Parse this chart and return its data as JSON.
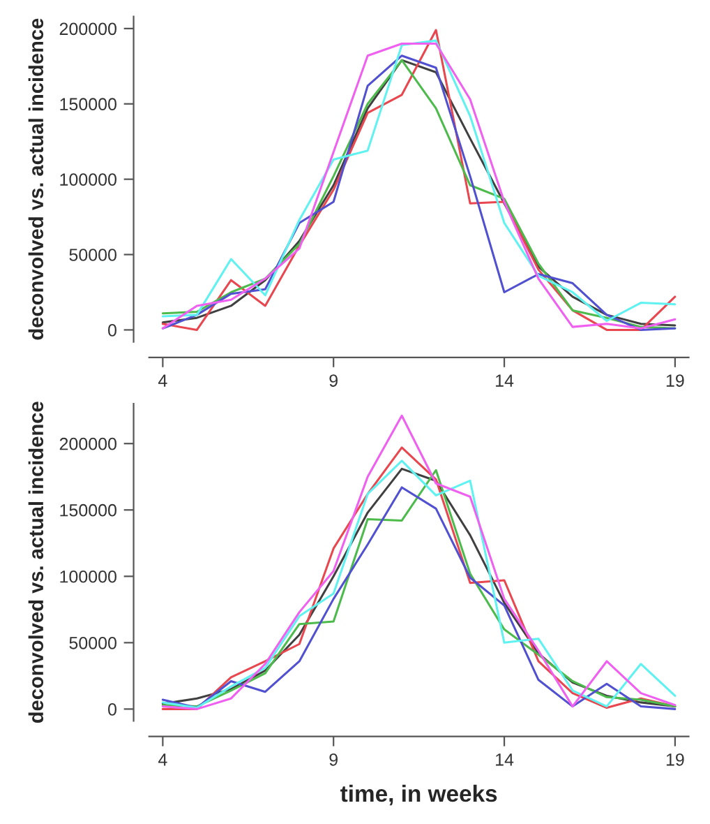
{
  "chart_data": [
    {
      "type": "line",
      "ylabel": "deconvolved vs. actual incidence",
      "x": [
        4,
        5,
        6,
        7,
        8,
        9,
        10,
        11,
        12,
        13,
        14,
        15,
        16,
        17,
        18,
        19
      ],
      "xlim": [
        3.6,
        19.4
      ],
      "xticks": [
        4,
        9,
        14,
        19
      ],
      "ylim": [
        -8000,
        208000
      ],
      "yticks": [
        0,
        50000,
        100000,
        150000,
        200000
      ],
      "grid": false,
      "marker": "none",
      "line_style": "solid",
      "series": [
        {
          "color": "#404040",
          "values": [
            5000,
            8000,
            16000,
            33000,
            59000,
            96000,
            147000,
            179000,
            171000,
            127000,
            84000,
            42000,
            22000,
            10000,
            4000,
            3000
          ]
        },
        {
          "color": "#e8474f",
          "values": [
            4000,
            0,
            33000,
            16000,
            56000,
            93000,
            144000,
            156000,
            199000,
            84000,
            85000,
            40000,
            13000,
            0,
            0,
            22000
          ]
        },
        {
          "color": "#4cbb4c",
          "values": [
            11000,
            12000,
            25000,
            34000,
            57000,
            102000,
            150000,
            179000,
            147000,
            96000,
            87000,
            44000,
            13000,
            8000,
            2000,
            1000
          ]
        },
        {
          "color": "#5050d0",
          "values": [
            1000,
            10000,
            24000,
            27000,
            71000,
            85000,
            162000,
            182000,
            174000,
            102000,
            25000,
            37000,
            31000,
            10000,
            0,
            1000
          ]
        },
        {
          "color": "#5ff2f0",
          "values": [
            9000,
            10000,
            47000,
            23000,
            73000,
            113000,
            119000,
            189000,
            192000,
            142000,
            71000,
            36000,
            25000,
            6000,
            18000,
            17000
          ]
        },
        {
          "color": "#f060f0",
          "values": [
            1000,
            16000,
            20000,
            34000,
            54000,
            118000,
            182000,
            190000,
            190000,
            153000,
            85000,
            34000,
            2000,
            4000,
            1000,
            7000
          ]
        }
      ]
    },
    {
      "type": "line",
      "xlabel": "time, in weeks",
      "ylabel": "deconvolved vs. actual incidence",
      "x": [
        4,
        5,
        6,
        7,
        8,
        9,
        10,
        11,
        12,
        13,
        14,
        15,
        16,
        17,
        18,
        19
      ],
      "xlim": [
        3.6,
        19.4
      ],
      "xticks": [
        4,
        9,
        14,
        19
      ],
      "ylim": [
        -9000,
        230000
      ],
      "yticks": [
        0,
        50000,
        100000,
        150000,
        200000
      ],
      "grid": false,
      "marker": "none",
      "line_style": "solid",
      "series": [
        {
          "color": "#404040",
          "values": [
            4000,
            8000,
            15000,
            29000,
            56000,
            100000,
            148000,
            181000,
            172000,
            131000,
            80000,
            42000,
            20000,
            10000,
            5000,
            2000
          ]
        },
        {
          "color": "#e8474f",
          "values": [
            0,
            0,
            24000,
            36000,
            49000,
            121000,
            162000,
            197000,
            173000,
            95000,
            97000,
            36000,
            12000,
            1000,
            8000,
            2000
          ]
        },
        {
          "color": "#4cbb4c",
          "values": [
            3000,
            2000,
            14000,
            27000,
            64000,
            66000,
            143000,
            142000,
            180000,
            102000,
            60000,
            41000,
            21000,
            9000,
            7000,
            2000
          ]
        },
        {
          "color": "#5050d0",
          "values": [
            7000,
            1000,
            21000,
            13000,
            36000,
            83000,
            124000,
            167000,
            151000,
            99000,
            78000,
            22000,
            2000,
            19000,
            2000,
            0
          ]
        },
        {
          "color": "#5ff2f0",
          "values": [
            5000,
            1000,
            17000,
            31000,
            70000,
            87000,
            162000,
            187000,
            161000,
            172000,
            50000,
            53000,
            14000,
            2000,
            34000,
            10000
          ]
        },
        {
          "color": "#f060f0",
          "values": [
            2000,
            0,
            8000,
            34000,
            73000,
            104000,
            175000,
            221000,
            170000,
            160000,
            83000,
            44000,
            2000,
            36000,
            12000,
            3000
          ]
        }
      ]
    }
  ]
}
